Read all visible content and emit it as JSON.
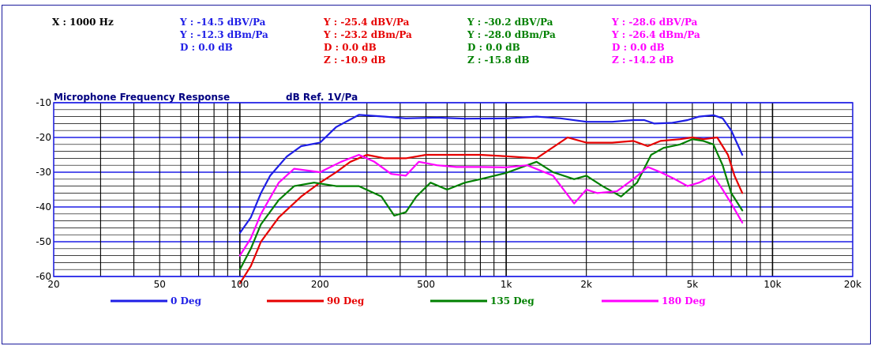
{
  "readout": {
    "x_label": "X : 1000 Hz",
    "columns": [
      {
        "color": "#1e1ee6",
        "lines": [
          "Y : -14.5 dBV/Pa",
          "Y : -12.3 dBm/Pa",
          "D : 0.0 dB"
        ]
      },
      {
        "color": "#e60000",
        "lines": [
          "Y : -25.4 dBV/Pa",
          "Y : -23.2 dBm/Pa",
          "D : 0.0 dB",
          "Z : -10.9 dB"
        ]
      },
      {
        "color": "#008000",
        "lines": [
          "Y : -30.2 dBV/Pa",
          "Y : -28.0 dBm/Pa",
          "D : 0.0 dB",
          "Z : -15.8 dB"
        ]
      },
      {
        "color": "#ff00ff",
        "lines": [
          "Y : -28.6 dBV/Pa",
          "Y : -26.4 dBm/Pa",
          "D : 0.0 dB",
          "Z : -14.2 dB"
        ]
      }
    ]
  },
  "chart_data": {
    "type": "line",
    "title": "Microphone Frequency Response",
    "ylabel": "dB Ref. 1V/Pa",
    "x_scale": "log",
    "xlim": [
      20,
      20000
    ],
    "ylim": [
      -60,
      -10
    ],
    "x_ticks": [
      {
        "value": 20,
        "label": "20"
      },
      {
        "value": 50,
        "label": "50"
      },
      {
        "value": 100,
        "label": "100"
      },
      {
        "value": 200,
        "label": "200"
      },
      {
        "value": 500,
        "label": "500"
      },
      {
        "value": 1000,
        "label": "1k"
      },
      {
        "value": 2000,
        "label": "2k"
      },
      {
        "value": 5000,
        "label": "5k"
      },
      {
        "value": 10000,
        "label": "10k"
      },
      {
        "value": 20000,
        "label": "20k"
      }
    ],
    "y_ticks": [
      {
        "value": -10,
        "label": "-10"
      },
      {
        "value": -20,
        "label": "-20"
      },
      {
        "value": -30,
        "label": "-30"
      },
      {
        "value": -40,
        "label": "-40"
      },
      {
        "value": -50,
        "label": "-50"
      },
      {
        "value": -60,
        "label": "-60"
      }
    ],
    "grid": true,
    "legend_position": "bottom",
    "series": [
      {
        "name": "0 Deg",
        "color": "#1e1ee6",
        "x": [
          100,
          110,
          120,
          130,
          150,
          170,
          200,
          230,
          280,
          350,
          420,
          550,
          700,
          1000,
          1300,
          1600,
          2000,
          2500,
          3000,
          3300,
          3600,
          4200,
          4800,
          5300,
          6000,
          6500,
          7000,
          7700
        ],
        "y": [
          -47.5,
          -43,
          -36,
          -31,
          -25.5,
          -22.5,
          -21.5,
          -17,
          -13.5,
          -14,
          -14.5,
          -14.3,
          -14.6,
          -14.5,
          -14,
          -14.5,
          -15.5,
          -15.5,
          -15,
          -15,
          -16,
          -15.8,
          -15,
          -14,
          -13.6,
          -14.5,
          -18,
          -25
        ]
      },
      {
        "name": "90 Deg",
        "color": "#e60000",
        "x": [
          100,
          110,
          120,
          140,
          170,
          200,
          230,
          260,
          300,
          350,
          420,
          500,
          600,
          800,
          1000,
          1300,
          1700,
          2000,
          2500,
          3000,
          3400,
          3800,
          4500,
          5000,
          5500,
          6200,
          6800,
          7200,
          7700
        ],
        "y": [
          -62,
          -57,
          -50,
          -43,
          -37,
          -33,
          -30,
          -27,
          -25,
          -26,
          -26,
          -25,
          -25,
          -25,
          -25.4,
          -26,
          -20,
          -21.5,
          -21.5,
          -21,
          -22.5,
          -21,
          -20.5,
          -20,
          -20.5,
          -20,
          -25,
          -31,
          -36
        ]
      },
      {
        "name": "135 Deg",
        "color": "#008000",
        "x": [
          100,
          110,
          120,
          140,
          160,
          190,
          230,
          280,
          340,
          380,
          420,
          460,
          520,
          600,
          700,
          800,
          1000,
          1300,
          1500,
          1800,
          2000,
          2300,
          2700,
          3100,
          3500,
          3900,
          4500,
          5000,
          5500,
          6000,
          6500,
          7000,
          7700
        ],
        "y": [
          -58,
          -52,
          -45,
          -38,
          -34,
          -33,
          -34,
          -34,
          -37,
          -42.5,
          -41.5,
          -37,
          -33,
          -35,
          -33,
          -32,
          -30.2,
          -27,
          -30,
          -32,
          -31,
          -34,
          -37,
          -33,
          -25,
          -23,
          -22,
          -20.5,
          -21,
          -22,
          -28,
          -36,
          -41
        ]
      },
      {
        "name": "180 Deg",
        "color": "#ff00ff",
        "x": [
          100,
          110,
          120,
          140,
          160,
          200,
          240,
          280,
          320,
          370,
          420,
          470,
          550,
          650,
          800,
          1000,
          1200,
          1500,
          1800,
          2000,
          2200,
          2600,
          3000,
          3400,
          3800,
          4300,
          4800,
          5300,
          6000,
          6500,
          7000,
          7700
        ],
        "y": [
          -54,
          -49,
          -42,
          -33,
          -29,
          -30,
          -27,
          -25,
          -27,
          -30.5,
          -31,
          -27,
          -28,
          -28.5,
          -28.5,
          -28.6,
          -28,
          -31,
          -39,
          -35,
          -36,
          -35.5,
          -32,
          -28.5,
          -30,
          -32,
          -34,
          -33,
          -31,
          -35,
          -39,
          -44.5
        ]
      }
    ]
  }
}
